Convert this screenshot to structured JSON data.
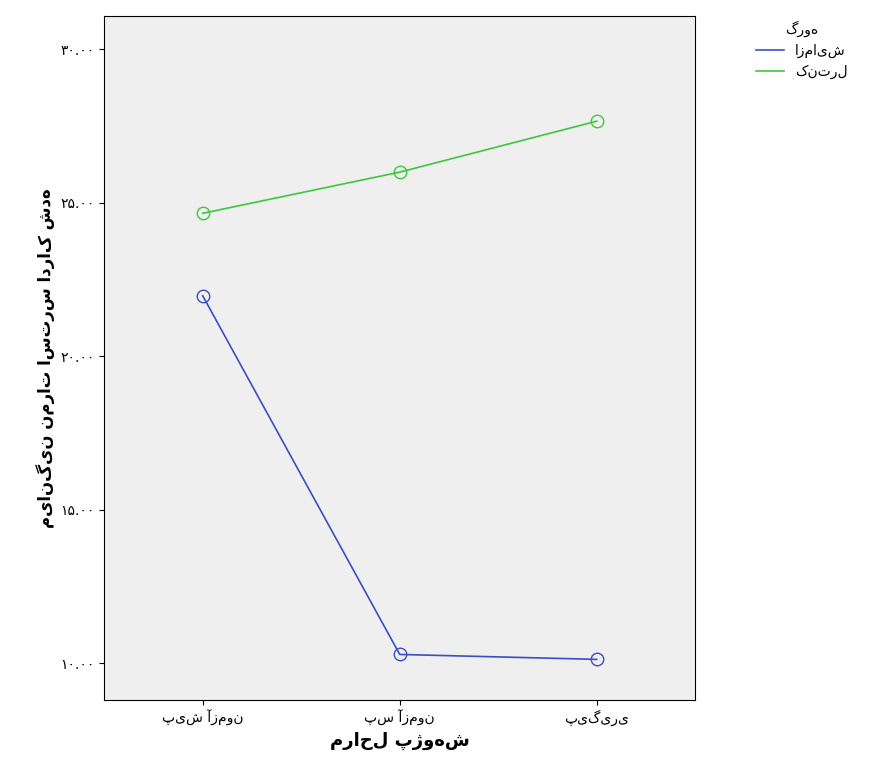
{
  "chart_data": {
    "type": "line",
    "xlabel": "مراحل پژوهش",
    "ylabel": "میانگین نمرات استرس ادراک شده",
    "legend_title": "گروه",
    "legend": "upper right",
    "grid": false,
    "categories": [
      "پیش آزمون",
      "پس آزمون",
      "پیگیری"
    ],
    "series": [
      {
        "name": "ازمایش",
        "color": "#3a4fc4",
        "marker": "circle",
        "line_style": "solid",
        "values": [
          21.97,
          10.29,
          10.13
        ]
      },
      {
        "name": "کنترل",
        "color": "#3cc83c",
        "marker": "circle",
        "line_style": "solid",
        "values": [
          24.66,
          26.0,
          27.66
        ]
      }
    ],
    "ylim": [
      8.8,
      31.1
    ],
    "yticks": [
      {
        "value": 10,
        "label": "۱۰.۰۰"
      },
      {
        "value": 15,
        "label": "۱۵.۰۰"
      },
      {
        "value": 20,
        "label": "۲۰.۰۰"
      },
      {
        "value": 25,
        "label": "۲۵.۰۰"
      },
      {
        "value": 30,
        "label": "۳۰.۰۰"
      }
    ]
  }
}
